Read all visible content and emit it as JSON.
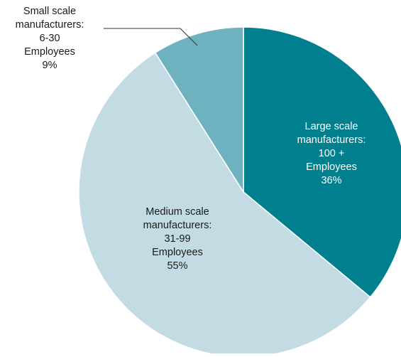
{
  "chart_data": {
    "type": "pie",
    "start_angle": "12 o'clock",
    "direction": "clockwise",
    "slices": [
      {
        "category": "Large scale manufacturers",
        "value": 36,
        "color": "#007f8f",
        "label_lines": [
          "Large scale",
          "manufacturers:",
          "100 +",
          "Employees",
          "36%"
        ],
        "label_color": "#ffffff"
      },
      {
        "category": "Medium scale manufacturers",
        "value": 55,
        "color": "#c3dce3",
        "label_lines": [
          "Medium scale",
          "manufacturers:",
          "31-99",
          "Employees",
          "55%"
        ],
        "label_color": "#1a1a1a"
      },
      {
        "category": "Small scale manufacturers",
        "value": 9,
        "color": "#6fb2bf",
        "label_lines": [
          "Small scale",
          "manufacturers:",
          "6-30",
          "Employees",
          "9%"
        ],
        "label_color": "#1a1a1a"
      }
    ],
    "slice_border_color": "#ffffff",
    "leader_line_color": "#333333"
  }
}
